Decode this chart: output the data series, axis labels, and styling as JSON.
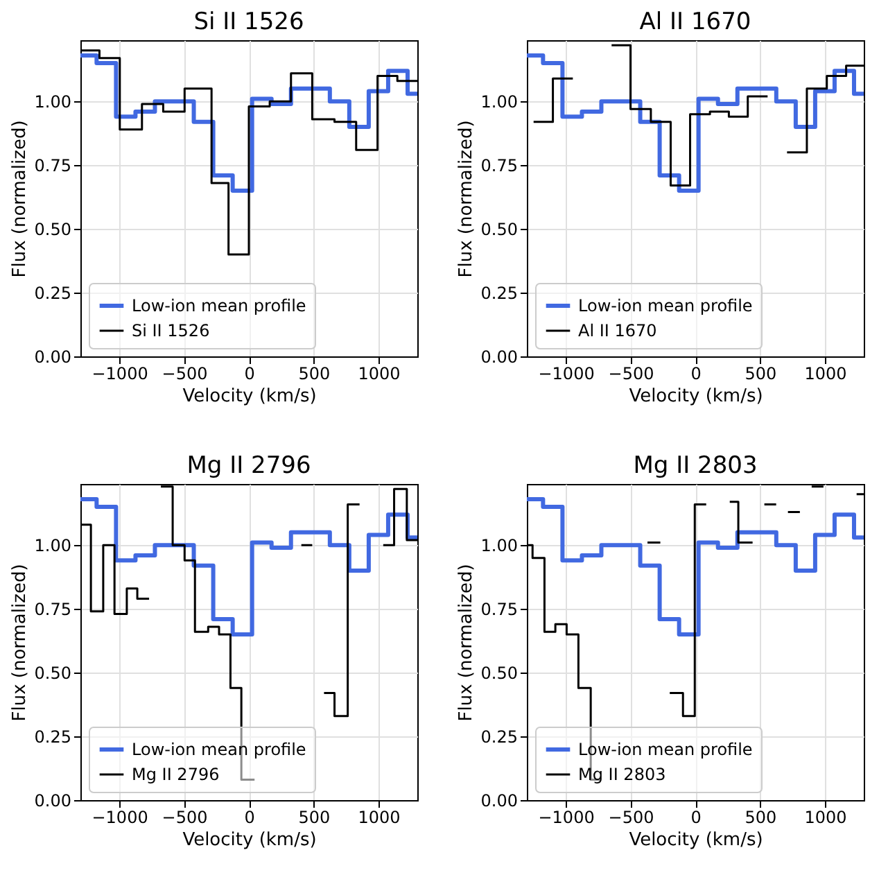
{
  "chart_data": [
    {
      "type": "step",
      "title": "Si II 1526",
      "xlabel": "Velocity (km/s)",
      "ylabel": "Flux (normalized)",
      "xlim": [
        -1300,
        1300
      ],
      "ylim": [
        0,
        1.24
      ],
      "xticks": [
        -1000,
        -500,
        0,
        500,
        1000
      ],
      "yticks": [
        {
          "value": 0,
          "label": "0.00"
        },
        {
          "value": 0.25,
          "label": "0.25"
        },
        {
          "value": 0.5,
          "label": "0.50"
        },
        {
          "value": 0.75,
          "label": "0.75"
        },
        {
          "value": 1,
          "label": "1.00"
        }
      ],
      "grid": true,
      "legend": "bottom left",
      "series": [
        {
          "name": "Low-ion mean profile",
          "color": "#4169e1",
          "x": [
            -1300,
            -1175,
            -1025,
            -875,
            -725,
            -575,
            -425,
            -275,
            -125,
            25,
            175,
            325,
            475,
            625,
            775,
            925,
            1075,
            1225,
            1300
          ],
          "values": [
            1.18,
            1.15,
            0.94,
            0.96,
            1.0,
            1.0,
            0.92,
            0.71,
            0.65,
            1.01,
            0.99,
            1.05,
            1.05,
            1.0,
            0.9,
            1.04,
            1.12,
            1.03,
            1.03
          ]
        },
        {
          "name": "Si II 1526",
          "color": "#000000",
          "x": [
            -1300,
            -1153,
            -996,
            -825,
            -661,
            -496,
            -288,
            -157,
            0,
            161,
            325,
            489,
            661,
            828,
            993,
            1146,
            1300
          ],
          "values": [
            1.2,
            1.17,
            0.89,
            0.99,
            0.96,
            1.05,
            0.68,
            0.4,
            0.98,
            1.0,
            1.11,
            0.93,
            0.92,
            0.81,
            1.1,
            1.08,
            1.08
          ]
        }
      ]
    },
    {
      "type": "step",
      "title": "Al II 1670",
      "xlabel": "Velocity (km/s)",
      "ylabel": "Flux (normalized)",
      "xlim": [
        -1300,
        1300
      ],
      "ylim": [
        0,
        1.24
      ],
      "xticks": [
        -1000,
        -500,
        0,
        500,
        1000
      ],
      "yticks": [
        {
          "value": 0,
          "label": "0.00"
        },
        {
          "value": 0.25,
          "label": "0.25"
        },
        {
          "value": 0.5,
          "label": "0.50"
        },
        {
          "value": 0.75,
          "label": "0.75"
        },
        {
          "value": 1,
          "label": "1.00"
        }
      ],
      "grid": true,
      "legend": "bottom left",
      "series": [
        {
          "name": "Low-ion mean profile",
          "color": "#4169e1",
          "x": [
            -1300,
            -1175,
            -1025,
            -875,
            -725,
            -575,
            -425,
            -275,
            -125,
            25,
            175,
            325,
            475,
            625,
            775,
            925,
            1075,
            1225,
            1300
          ],
          "values": [
            1.18,
            1.15,
            0.94,
            0.96,
            1.0,
            1.0,
            0.92,
            0.71,
            0.65,
            1.01,
            0.99,
            1.05,
            1.05,
            1.0,
            0.9,
            1.04,
            1.12,
            1.03,
            1.03
          ]
        },
        {
          "name": "Al II 1670",
          "color": "#000000",
          "x": [
            -1248,
            -1099,
            -945,
            -646,
            -500,
            -343,
            -190,
            -40,
            113,
            259,
            405,
            558,
            708,
            861,
            1015,
            1164,
            1300
          ],
          "values": [
            0.92,
            1.09,
            null,
            1.22,
            0.97,
            0.92,
            0.67,
            0.95,
            0.96,
            0.94,
            1.02,
            null,
            0.8,
            1.05,
            1.1,
            1.14,
            1.14
          ]
        }
      ]
    },
    {
      "type": "step",
      "title": "Mg II 2796",
      "xlabel": "Velocity (km/s)",
      "ylabel": "Flux (normalized)",
      "xlim": [
        -1300,
        1300
      ],
      "ylim": [
        0,
        1.24
      ],
      "xticks": [
        -1000,
        -500,
        0,
        500,
        1000
      ],
      "yticks": [
        {
          "value": 0,
          "label": "0.00"
        },
        {
          "value": 0.25,
          "label": "0.25"
        },
        {
          "value": 0.5,
          "label": "0.50"
        },
        {
          "value": 0.75,
          "label": "0.75"
        },
        {
          "value": 1,
          "label": "1.00"
        }
      ],
      "grid": true,
      "legend": "bottom left",
      "series": [
        {
          "name": "Low-ion mean profile",
          "color": "#4169e1",
          "x": [
            -1300,
            -1175,
            -1025,
            -875,
            -725,
            -575,
            -425,
            -275,
            -125,
            25,
            175,
            325,
            475,
            625,
            775,
            925,
            1075,
            1225,
            1300
          ],
          "values": [
            1.18,
            1.15,
            0.94,
            0.96,
            1.0,
            1.0,
            0.92,
            0.71,
            0.65,
            1.01,
            0.99,
            1.05,
            1.05,
            1.0,
            0.9,
            1.04,
            1.12,
            1.03,
            1.03
          ]
        },
        {
          "name": "Mg II 2796",
          "color": "#000000",
          "x": [
            -1300,
            -1219,
            -1124,
            -1037,
            -942,
            -861,
            -770,
            -679,
            -588,
            -496,
            -416,
            -314,
            -230,
            -142,
            -58,
            44,
            405,
            489,
            580,
            661,
            763,
            854,
            1037,
            1121,
            1219,
            1300
          ],
          "values": [
            1.08,
            0.74,
            1.0,
            0.73,
            0.83,
            0.79,
            null,
            1.23,
            1.0,
            0.94,
            0.66,
            0.68,
            0.65,
            0.44,
            0.08,
            null,
            1.0,
            null,
            0.42,
            0.33,
            1.16,
            null,
            1.0,
            1.22,
            1.02,
            1.02
          ]
        }
      ]
    },
    {
      "type": "step",
      "title": "Mg II 2803",
      "xlabel": "Velocity (km/s)",
      "ylabel": "Flux (normalized)",
      "xlim": [
        -1300,
        1300
      ],
      "ylim": [
        0,
        1.24
      ],
      "xticks": [
        -1000,
        -500,
        0,
        500,
        1000
      ],
      "yticks": [
        {
          "value": 0,
          "label": "0.00"
        },
        {
          "value": 0.25,
          "label": "0.25"
        },
        {
          "value": 0.5,
          "label": "0.50"
        },
        {
          "value": 0.75,
          "label": "0.75"
        },
        {
          "value": 1,
          "label": "1.00"
        }
      ],
      "grid": true,
      "legend": "bottom left",
      "series": [
        {
          "name": "Low-ion mean profile",
          "color": "#4169e1",
          "x": [
            -1300,
            -1175,
            -1025,
            -875,
            -725,
            -575,
            -425,
            -275,
            -125,
            25,
            175,
            325,
            475,
            625,
            775,
            925,
            1075,
            1225,
            1300
          ],
          "values": [
            1.18,
            1.15,
            0.94,
            0.96,
            1.0,
            1.0,
            0.92,
            0.71,
            0.65,
            1.01,
            0.99,
            1.05,
            1.05,
            1.0,
            0.9,
            1.04,
            1.12,
            1.03,
            1.03
          ]
        },
        {
          "name": "Mg II 2803",
          "color": "#000000",
          "x": [
            -1300,
            -1256,
            -1164,
            -1080,
            -993,
            -902,
            -807,
            -726,
            -369,
            -270,
            -197,
            -95,
            -4,
            84,
            266,
            332,
            442,
            533,
            624,
            715,
            807,
            898,
            989,
            1245,
            1300
          ],
          "values": [
            1.0,
            0.95,
            0.66,
            0.69,
            0.65,
            0.44,
            0.08,
            null,
            1.01,
            null,
            0.42,
            0.33,
            1.16,
            null,
            1.17,
            1.01,
            null,
            1.16,
            null,
            1.13,
            null,
            1.23,
            null,
            1.2,
            1.2
          ]
        }
      ]
    }
  ]
}
